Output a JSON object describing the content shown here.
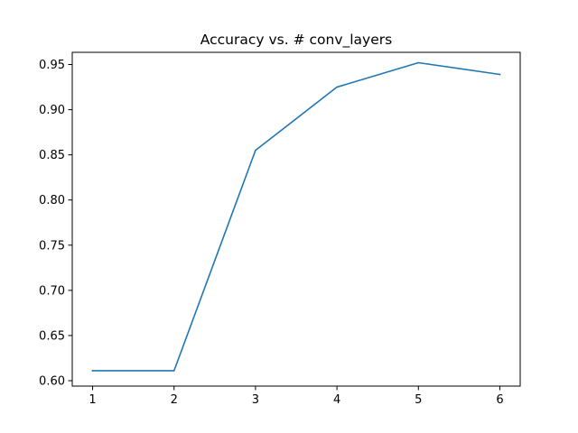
{
  "chart_data": {
    "type": "line",
    "title": "Accuracy vs. # conv_layers",
    "xlabel": "",
    "ylabel": "",
    "x": [
      1,
      2,
      3,
      4,
      5,
      6
    ],
    "series": [
      {
        "values": [
          0.611,
          0.611,
          0.855,
          0.925,
          0.952,
          0.939
        ],
        "color": "#1f77b4"
      }
    ],
    "xlim": [
      0.75,
      6.25
    ],
    "ylim": [
      0.594,
      0.9635
    ],
    "xticks": [
      1,
      2,
      3,
      4,
      5,
      6
    ],
    "xtick_labels": [
      "1",
      "2",
      "3",
      "4",
      "5",
      "6"
    ],
    "yticks": [
      0.6,
      0.65,
      0.7,
      0.75,
      0.8,
      0.85,
      0.9,
      0.95
    ],
    "ytick_labels": [
      "0.60",
      "0.65",
      "0.70",
      "0.75",
      "0.80",
      "0.85",
      "0.90",
      "0.95"
    ],
    "grid": false,
    "legend": "none"
  }
}
